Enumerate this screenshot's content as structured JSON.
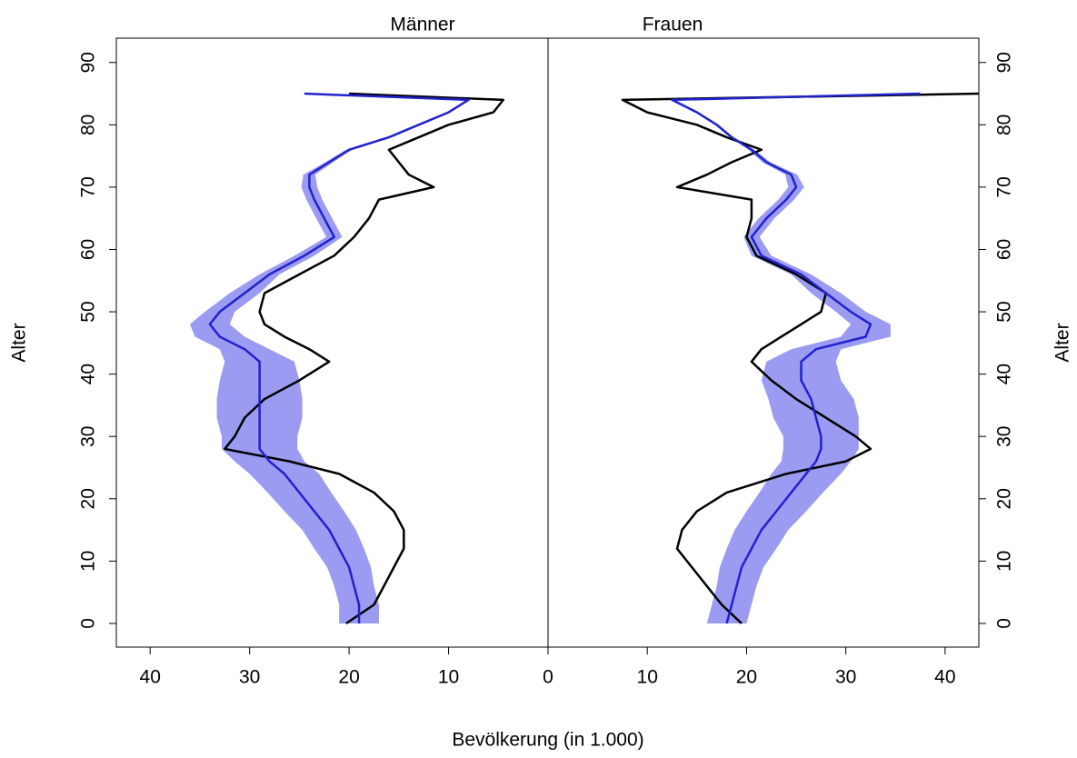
{
  "chart_data": {
    "type": "line",
    "x_label": "Bevölkerung (in 1.000)",
    "y_label": "Alter",
    "ages": [
      0,
      3,
      6,
      9,
      12,
      15,
      18,
      21,
      24,
      26,
      28,
      30,
      33,
      36,
      39,
      42,
      44,
      46,
      48,
      50,
      53,
      56,
      59,
      62,
      65,
      68,
      70,
      72,
      74,
      76,
      78,
      80,
      82,
      84,
      85
    ],
    "ylim": [
      -3.8,
      93.9
    ],
    "yticks": [
      0,
      10,
      20,
      30,
      40,
      50,
      60,
      70,
      80,
      90
    ],
    "panels": [
      {
        "title": "Männer",
        "xlim": [
          43.4,
          0
        ],
        "xticks": [
          40,
          30,
          20,
          10,
          0
        ],
        "series": [
          {
            "color": "#000000",
            "values": [
              20.3,
              17.5,
              16.5,
              15.5,
              14.5,
              14.5,
              15.5,
              17.5,
              21,
              26,
              32.5,
              31.5,
              30.5,
              28.5,
              25,
              22,
              24,
              26.5,
              28.5,
              29,
              28.5,
              25,
              21.5,
              19.5,
              18,
              17,
              11.5,
              14,
              15,
              16,
              13,
              10,
              5.5,
              4.5,
              20
            ]
          },
          {
            "color": "#2222cc",
            "error_color": "#9b9bf2",
            "values": [
              19,
              19,
              19.5,
              20,
              21,
              22,
              23.5,
              25,
              26.5,
              28,
              29,
              29,
              29,
              29,
              29,
              29,
              30.5,
              33,
              34,
              33,
              30.5,
              28,
              24.5,
              21.5,
              22.5,
              23.5,
              24,
              24,
              22,
              20,
              16,
              13,
              10,
              8,
              24.5
            ],
            "error": [
              2,
              2,
              2,
              2.2,
              2.5,
              2.7,
              3,
              3.2,
              3.5,
              3.5,
              3.8,
              3.8,
              4.3,
              4.3,
              4,
              3.5,
              2.5,
              2.5,
              2,
              1.5,
              1.5,
              1,
              1,
              0.8,
              0.8,
              0.8,
              0.8,
              0.6,
              0.4,
              0.3,
              0.2,
              0.2,
              0.2,
              0.2,
              0.2
            ]
          }
        ]
      },
      {
        "title": "Frauen",
        "xlim": [
          0,
          43.4
        ],
        "xticks": [
          10,
          20,
          30,
          40
        ],
        "series": [
          {
            "color": "#000000",
            "values": [
              19.5,
              17.5,
              16,
              14.5,
              13,
              13.5,
              15,
              18,
              24,
              30,
              32.5,
              31,
              28,
              25,
              22.5,
              20.5,
              21.5,
              23.5,
              25.5,
              27.5,
              28,
              25,
              21,
              20,
              20.5,
              20.5,
              13,
              16,
              18.5,
              21.5,
              18,
              15,
              10,
              7.5,
              43.4
            ]
          },
          {
            "color": "#2222cc",
            "error_color": "#9b9bf2",
            "values": [
              18,
              18.5,
              19,
              19.5,
              20.5,
              21.5,
              23,
              24.5,
              26,
              27,
              27.5,
              27.5,
              27,
              26.5,
              25.5,
              25.5,
              27,
              32,
              32.5,
              30.5,
              28,
              25.5,
              21.5,
              20.5,
              22,
              24,
              25,
              24.5,
              22,
              20.5,
              18.5,
              17,
              15,
              12.5,
              37.5
            ],
            "error": [
              2,
              2,
              2,
              2.2,
              2.5,
              2.7,
              3,
              3.2,
              3.5,
              3.5,
              3.8,
              3.8,
              4.3,
              4.3,
              4,
              3.5,
              2.5,
              2.5,
              2,
              1.5,
              1.5,
              1,
              1,
              0.8,
              0.8,
              0.8,
              0.8,
              0.6,
              0.4,
              0.3,
              0.2,
              0.2,
              0.2,
              0.2,
              0.2
            ]
          }
        ]
      }
    ]
  }
}
